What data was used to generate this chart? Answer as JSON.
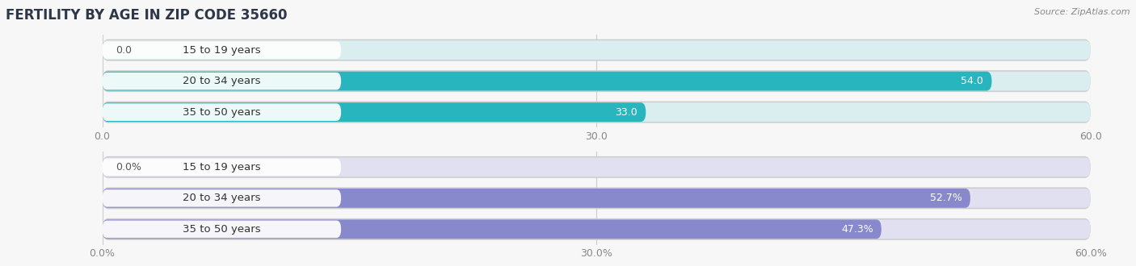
{
  "title": "FERTILITY BY AGE IN ZIP CODE 35660",
  "source": "Source: ZipAtlas.com",
  "chart1": {
    "categories": [
      "15 to 19 years",
      "20 to 34 years",
      "35 to 50 years"
    ],
    "values": [
      0.0,
      54.0,
      33.0
    ],
    "xlim": [
      0,
      60
    ],
    "xticks": [
      0.0,
      30.0,
      60.0
    ],
    "xtick_labels": [
      "0.0",
      "30.0",
      "60.0"
    ],
    "bar_color": "#29b5be",
    "bar_bg_color": "#daeef0",
    "bar_border_color": "#b0d8dc"
  },
  "chart2": {
    "categories": [
      "15 to 19 years",
      "20 to 34 years",
      "35 to 50 years"
    ],
    "values": [
      0.0,
      52.7,
      47.3
    ],
    "xlim": [
      0,
      60
    ],
    "xticks": [
      0.0,
      30.0,
      60.0
    ],
    "xtick_labels": [
      "0.0%",
      "30.0%",
      "60.0%"
    ],
    "bar_color": "#8888cc",
    "bar_bg_color": "#e0e0f0",
    "bar_border_color": "#c0c0e0"
  },
  "bg_color": "#f7f7f7",
  "bar_height": 0.62,
  "title_fontsize": 12,
  "axis_fontsize": 9,
  "label_fontsize": 9.5,
  "value_fontsize": 9
}
